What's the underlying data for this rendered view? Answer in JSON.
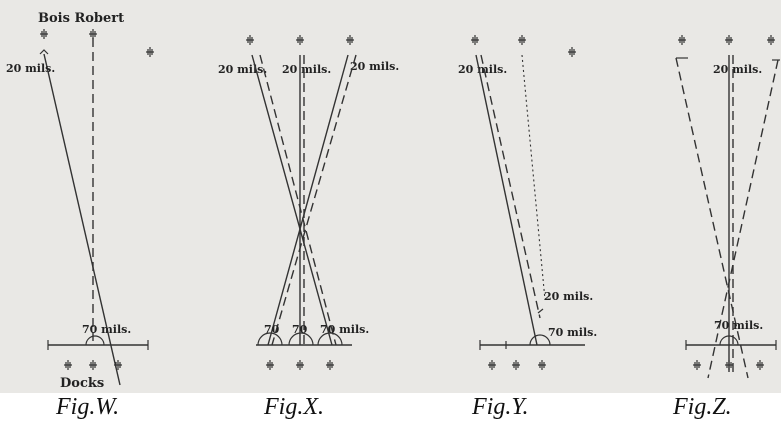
{
  "labels": {
    "bois_robert": "Bois Robert",
    "docks": "Docks",
    "w_top": "20 mils.",
    "w_bottom": "70 mils.",
    "x_top_left": "20 mils.",
    "x_top_mid": "20 mils.",
    "x_top_right": "20 mils.",
    "x_bottom_left": "70",
    "x_bottom_mid": "70",
    "x_bottom_right": "70 mils.",
    "y_top": "20 mils.",
    "y_mid": "20 mils.",
    "y_bottom": "70 mils.",
    "z_top": "20 mils.",
    "z_bottom": "70 mils."
  },
  "captions": {
    "w": "Fig.W.",
    "x": "Fig.X.",
    "y": "Fig.Y.",
    "z": "Fig.Z."
  },
  "colors": {
    "plate": "#e9e8e5",
    "ink": "#333333"
  }
}
